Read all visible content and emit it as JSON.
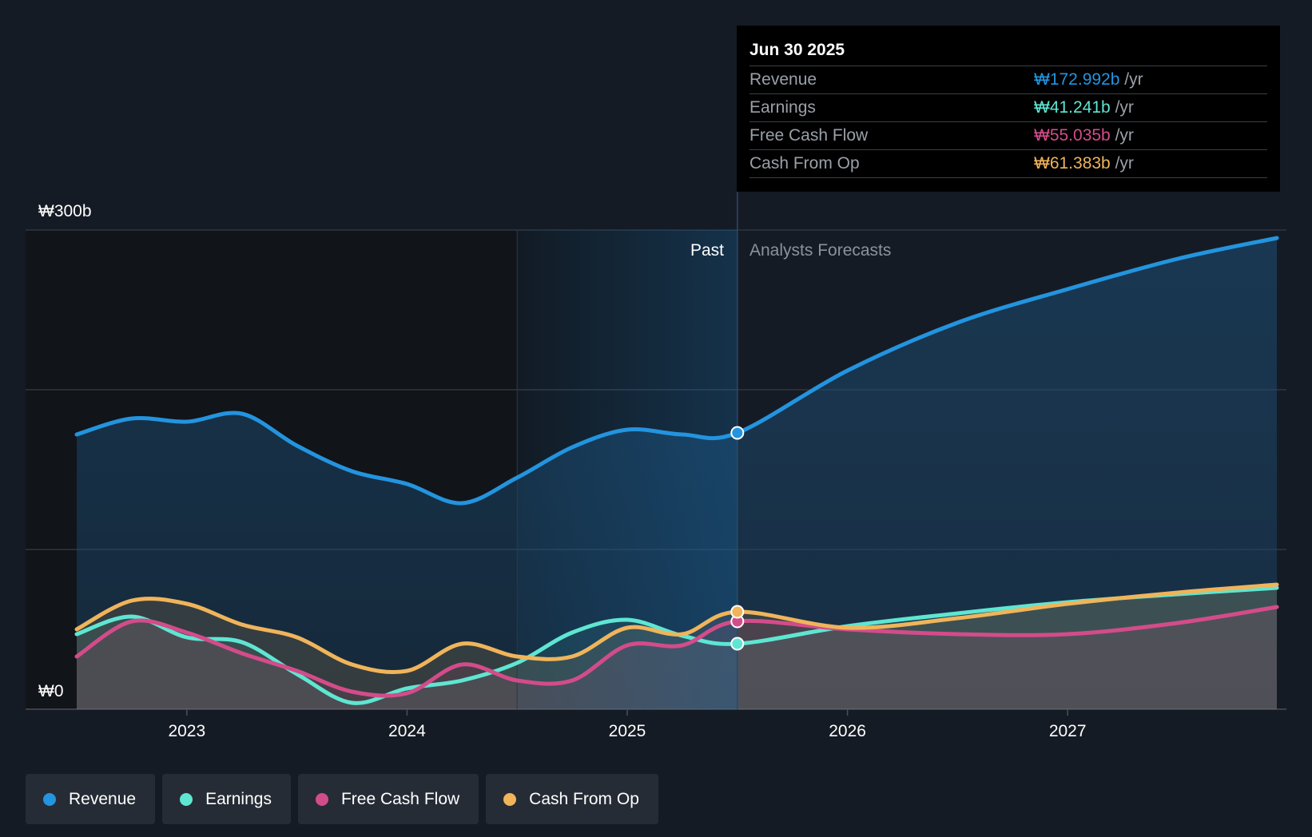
{
  "chart_data": {
    "type": "area",
    "currency": "₩",
    "y_labels": {
      "top": "₩300b",
      "bottom": "₩0"
    },
    "ylim": [
      0,
      300
    ],
    "y_gridlines": [
      0,
      100,
      200,
      300
    ],
    "x_ticks": [
      "2023",
      "2024",
      "2025",
      "2026",
      "2027"
    ],
    "xlim": [
      2022.5,
      2028.0
    ],
    "past_label": "Past",
    "forecast_label": "Analysts Forecasts",
    "past_end": 2025.5,
    "highlight_start": 2024.5,
    "series": [
      {
        "name": "Revenue",
        "color": "#2394df",
        "points": [
          [
            2022.5,
            172
          ],
          [
            2022.75,
            182
          ],
          [
            2023.0,
            180
          ],
          [
            2023.25,
            185
          ],
          [
            2023.5,
            165
          ],
          [
            2023.75,
            149
          ],
          [
            2024.0,
            141
          ],
          [
            2024.25,
            129
          ],
          [
            2024.5,
            145
          ],
          [
            2024.75,
            164
          ],
          [
            2025.0,
            175
          ],
          [
            2025.25,
            172
          ],
          [
            2025.5,
            173
          ],
          [
            2026.0,
            212
          ],
          [
            2026.5,
            242
          ],
          [
            2027.0,
            263
          ],
          [
            2027.5,
            282
          ],
          [
            2027.95,
            295
          ]
        ]
      },
      {
        "name": "Earnings",
        "color": "#5ee6d2",
        "points": [
          [
            2022.5,
            47
          ],
          [
            2022.75,
            58
          ],
          [
            2023.0,
            45
          ],
          [
            2023.25,
            42
          ],
          [
            2023.5,
            22
          ],
          [
            2023.75,
            4
          ],
          [
            2024.0,
            13
          ],
          [
            2024.25,
            18
          ],
          [
            2024.5,
            29
          ],
          [
            2024.75,
            48
          ],
          [
            2025.0,
            56
          ],
          [
            2025.25,
            46
          ],
          [
            2025.5,
            41
          ],
          [
            2026.0,
            52
          ],
          [
            2026.5,
            60
          ],
          [
            2027.0,
            67
          ],
          [
            2027.5,
            72
          ],
          [
            2027.95,
            76
          ]
        ]
      },
      {
        "name": "Free Cash Flow",
        "color": "#d34c8a",
        "points": [
          [
            2022.5,
            33
          ],
          [
            2022.75,
            55
          ],
          [
            2023.0,
            48
          ],
          [
            2023.25,
            35
          ],
          [
            2023.5,
            24
          ],
          [
            2023.75,
            11
          ],
          [
            2024.0,
            10
          ],
          [
            2024.25,
            28
          ],
          [
            2024.5,
            18
          ],
          [
            2024.75,
            18
          ],
          [
            2025.0,
            40
          ],
          [
            2025.25,
            40
          ],
          [
            2025.5,
            55
          ],
          [
            2026.0,
            50
          ],
          [
            2026.5,
            47
          ],
          [
            2027.0,
            47
          ],
          [
            2027.5,
            54
          ],
          [
            2027.95,
            64
          ]
        ]
      },
      {
        "name": "Cash From Op",
        "color": "#f0b45a",
        "points": [
          [
            2022.5,
            50
          ],
          [
            2022.75,
            68
          ],
          [
            2023.0,
            66
          ],
          [
            2023.25,
            53
          ],
          [
            2023.5,
            45
          ],
          [
            2023.75,
            28
          ],
          [
            2024.0,
            24
          ],
          [
            2024.25,
            41
          ],
          [
            2024.5,
            33
          ],
          [
            2024.75,
            33
          ],
          [
            2025.0,
            51
          ],
          [
            2025.25,
            47
          ],
          [
            2025.5,
            61
          ],
          [
            2026.0,
            51
          ],
          [
            2026.5,
            57
          ],
          [
            2027.0,
            66
          ],
          [
            2027.5,
            73
          ],
          [
            2027.95,
            78
          ]
        ]
      }
    ],
    "tooltip": {
      "date": "Jun 30 2025",
      "rows": [
        {
          "label": "Revenue",
          "value": "₩172.992b",
          "unit": "/yr",
          "color": "#2394df"
        },
        {
          "label": "Earnings",
          "value": "₩41.241b",
          "unit": "/yr",
          "color": "#5ee6d2"
        },
        {
          "label": "Free Cash Flow",
          "value": "₩55.035b",
          "unit": "/yr",
          "color": "#d34c8a"
        },
        {
          "label": "Cash From Op",
          "value": "₩61.383b",
          "unit": "/yr",
          "color": "#f0b45a"
        }
      ]
    }
  },
  "legend": [
    {
      "label": "Revenue",
      "color": "#2394df"
    },
    {
      "label": "Earnings",
      "color": "#5ee6d2"
    },
    {
      "label": "Free Cash Flow",
      "color": "#d34c8a"
    },
    {
      "label": "Cash From Op",
      "color": "#f0b45a"
    }
  ]
}
